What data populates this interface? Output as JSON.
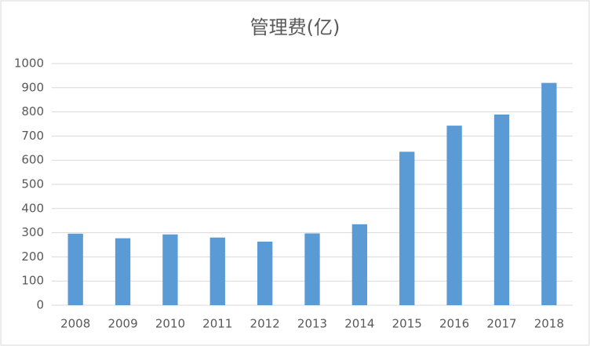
{
  "chart_data": {
    "type": "bar",
    "title": "管理费(亿)",
    "categories": [
      "2008",
      "2009",
      "2010",
      "2011",
      "2012",
      "2013",
      "2014",
      "2015",
      "2016",
      "2017",
      "2018"
    ],
    "values": [
      296,
      277,
      293,
      280,
      263,
      297,
      335,
      635,
      743,
      789,
      920
    ],
    "color": "#5b9bd5",
    "ylim": [
      0,
      1000
    ],
    "yticks": [
      0,
      100,
      200,
      300,
      400,
      500,
      600,
      700,
      800,
      900,
      1000
    ],
    "grid": true
  }
}
